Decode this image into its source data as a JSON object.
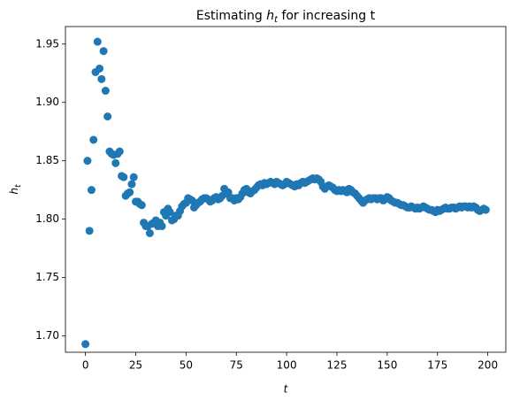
{
  "chart_data": {
    "type": "scatter",
    "title": {
      "before": "Estimating",
      "math": "h",
      "sub": "t",
      "after": "for increasing t"
    },
    "xlabel": "t",
    "ylabel": {
      "math": "h",
      "sub": "t"
    },
    "color": "#1f77b4",
    "xlim": [
      -9.95,
      208.95
    ],
    "ylim": [
      1.686,
      1.965
    ],
    "xticks": [
      0,
      25,
      50,
      75,
      100,
      125,
      150,
      175,
      200
    ],
    "yticks": [
      {
        "value": 1.7,
        "label": "1.70"
      },
      {
        "value": 1.75,
        "label": "1.75"
      },
      {
        "value": 1.8,
        "label": "1.80"
      },
      {
        "value": 1.85,
        "label": "1.85"
      },
      {
        "value": 1.9,
        "label": "1.90"
      },
      {
        "value": 1.95,
        "label": "1.95"
      }
    ],
    "x": [
      0,
      1,
      2,
      3,
      4,
      5,
      6,
      7,
      8,
      9,
      10,
      11,
      12,
      13,
      14,
      15,
      16,
      17,
      18,
      19,
      20,
      21,
      22,
      23,
      24,
      25,
      26,
      27,
      28,
      29,
      30,
      31,
      32,
      33,
      34,
      35,
      36,
      37,
      38,
      39,
      40,
      41,
      42,
      43,
      44,
      45,
      46,
      47,
      48,
      49,
      50,
      51,
      52,
      53,
      54,
      55,
      56,
      57,
      58,
      59,
      60,
      61,
      62,
      63,
      64,
      65,
      66,
      67,
      68,
      69,
      70,
      71,
      72,
      73,
      74,
      75,
      76,
      77,
      78,
      79,
      80,
      81,
      82,
      83,
      84,
      85,
      86,
      87,
      88,
      89,
      90,
      91,
      92,
      93,
      94,
      95,
      96,
      97,
      98,
      99,
      100,
      101,
      102,
      103,
      104,
      105,
      106,
      107,
      108,
      109,
      110,
      111,
      112,
      113,
      114,
      115,
      116,
      117,
      118,
      119,
      120,
      121,
      122,
      123,
      124,
      125,
      126,
      127,
      128,
      129,
      130,
      131,
      132,
      133,
      134,
      135,
      136,
      137,
      138,
      139,
      140,
      141,
      142,
      143,
      144,
      145,
      146,
      147,
      148,
      149,
      150,
      151,
      152,
      153,
      154,
      155,
      156,
      157,
      158,
      159,
      160,
      161,
      162,
      163,
      164,
      165,
      166,
      167,
      168,
      169,
      170,
      171,
      172,
      173,
      174,
      175,
      176,
      177,
      178,
      179,
      180,
      181,
      182,
      183,
      184,
      185,
      186,
      187,
      188,
      189,
      190,
      191,
      192,
      193,
      194,
      195,
      196,
      197,
      198,
      199
    ],
    "values": [
      1.693,
      1.85,
      1.79,
      1.825,
      1.868,
      1.926,
      1.952,
      1.929,
      1.92,
      1.944,
      1.91,
      1.888,
      1.858,
      1.856,
      1.855,
      1.848,
      1.856,
      1.858,
      1.837,
      1.836,
      1.82,
      1.822,
      1.823,
      1.83,
      1.836,
      1.815,
      1.815,
      1.813,
      1.812,
      1.797,
      1.794,
      1.794,
      1.788,
      1.796,
      1.797,
      1.799,
      1.794,
      1.797,
      1.794,
      1.806,
      1.803,
      1.809,
      1.806,
      1.799,
      1.8,
      1.803,
      1.803,
      1.807,
      1.811,
      1.813,
      1.814,
      1.818,
      1.817,
      1.816,
      1.81,
      1.812,
      1.814,
      1.815,
      1.817,
      1.818,
      1.818,
      1.817,
      1.815,
      1.816,
      1.818,
      1.819,
      1.817,
      1.818,
      1.82,
      1.826,
      1.822,
      1.823,
      1.818,
      1.818,
      1.816,
      1.818,
      1.817,
      1.819,
      1.822,
      1.825,
      1.826,
      1.823,
      1.822,
      1.824,
      1.825,
      1.827,
      1.829,
      1.83,
      1.829,
      1.831,
      1.83,
      1.831,
      1.832,
      1.831,
      1.83,
      1.832,
      1.831,
      1.83,
      1.829,
      1.83,
      1.832,
      1.831,
      1.83,
      1.829,
      1.828,
      1.83,
      1.829,
      1.831,
      1.832,
      1.831,
      1.832,
      1.833,
      1.834,
      1.835,
      1.834,
      1.835,
      1.834,
      1.832,
      1.828,
      1.826,
      1.828,
      1.829,
      1.828,
      1.827,
      1.825,
      1.824,
      1.825,
      1.824,
      1.825,
      1.824,
      1.823,
      1.826,
      1.825,
      1.823,
      1.822,
      1.82,
      1.818,
      1.816,
      1.814,
      1.816,
      1.817,
      1.818,
      1.817,
      1.818,
      1.818,
      1.817,
      1.818,
      1.818,
      1.816,
      1.817,
      1.819,
      1.818,
      1.816,
      1.815,
      1.814,
      1.814,
      1.813,
      1.812,
      1.812,
      1.811,
      1.81,
      1.81,
      1.811,
      1.81,
      1.809,
      1.81,
      1.809,
      1.81,
      1.811,
      1.81,
      1.809,
      1.808,
      1.808,
      1.807,
      1.806,
      1.808,
      1.807,
      1.808,
      1.809,
      1.81,
      1.809,
      1.809,
      1.81,
      1.81,
      1.809,
      1.81,
      1.811,
      1.81,
      1.811,
      1.811,
      1.81,
      1.811,
      1.81,
      1.811,
      1.81,
      1.808,
      1.807,
      1.808,
      1.809,
      1.808
    ]
  }
}
